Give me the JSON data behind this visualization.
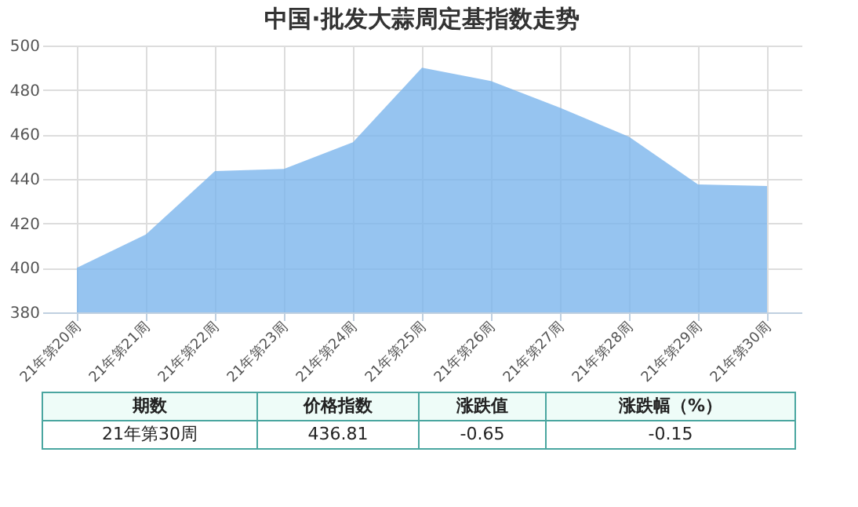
{
  "chart_data": {
    "type": "area",
    "title": "中国·批发大蒜周定基指数走势",
    "categories": [
      "21年第20周",
      "21年第21周",
      "21年第22周",
      "21年第23周",
      "21年第24周",
      "21年第25周",
      "21年第26周",
      "21年第27周",
      "21年第28周",
      "21年第29周",
      "21年第30周"
    ],
    "series": [
      {
        "color": "#7cb5ec",
        "values": [
          400,
          415,
          443.5,
          444.5,
          456.5,
          490,
          484,
          472,
          459,
          437.5,
          436.81
        ]
      }
    ],
    "ylim": [
      380,
      500
    ],
    "yticks": [
      380,
      400,
      420,
      440,
      460,
      480,
      500
    ],
    "grid": true,
    "legend": false,
    "annotations": [
      "期数",
      "价格指数",
      "涨跌值",
      "涨跌幅（%）",
      "21年第30周",
      "436.81",
      "-0.65",
      "-0.15"
    ]
  }
}
